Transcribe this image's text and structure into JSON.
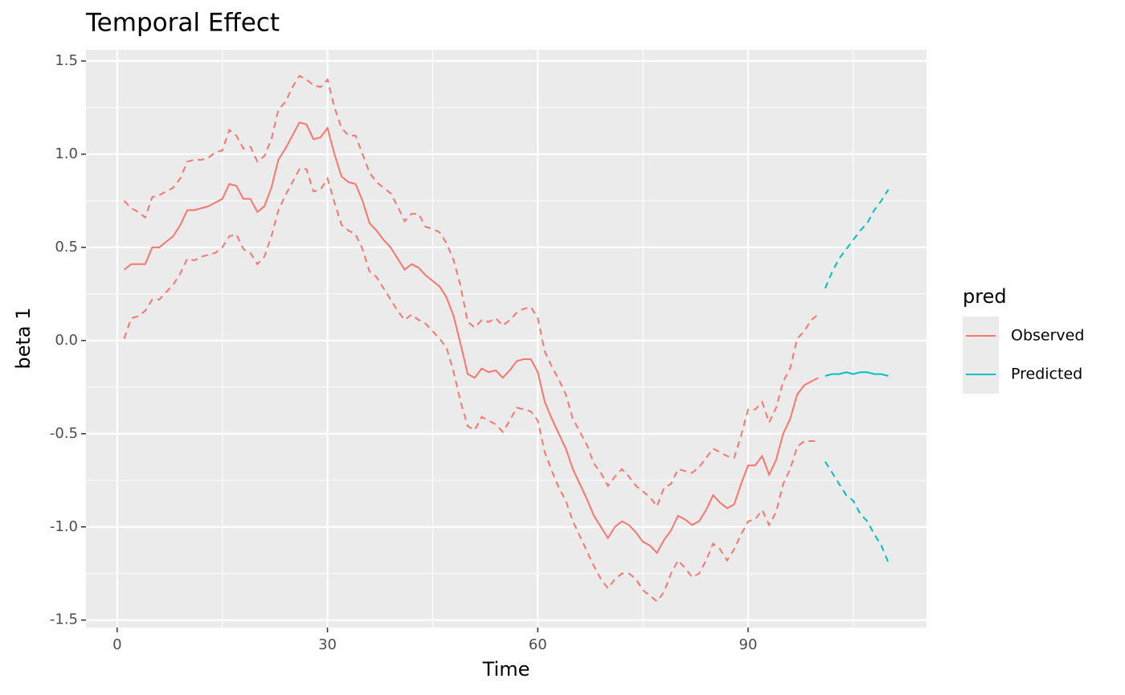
{
  "chart_data": {
    "type": "line",
    "title": "Temporal Effect",
    "x_label": "Time",
    "y_label": "beta 1",
    "legend_title": "pred",
    "legend_position": "right",
    "xlim": [
      -4.45,
      115.45
    ],
    "ylim": [
      -1.54,
      1.56
    ],
    "xticks": [
      0,
      30,
      60,
      90
    ],
    "yticks": [
      {
        "value": 1.5,
        "label": "1.5"
      },
      {
        "value": 1,
        "label": "1.0"
      },
      {
        "value": 0.5,
        "label": "0.5"
      },
      {
        "value": 0,
        "label": "0.0"
      },
      {
        "value": -0.5,
        "label": "-0.5"
      },
      {
        "value": -1,
        "label": "-1.0"
      },
      {
        "value": -1.5,
        "label": "-1.5"
      }
    ],
    "xminor": [
      15,
      45,
      75,
      105
    ],
    "yminor": [
      1.25,
      0.75,
      0.25,
      -0.25,
      -0.75,
      -1.25
    ],
    "grid": true,
    "series": [
      {
        "name": "Observed",
        "color": "#f8766d",
        "x": [
          1,
          2,
          3,
          4,
          5,
          6,
          7,
          8,
          9,
          10,
          11,
          12,
          13,
          14,
          15,
          16,
          17,
          18,
          19,
          20,
          21,
          22,
          23,
          24,
          25,
          26,
          27,
          28,
          29,
          30,
          31,
          32,
          33,
          34,
          35,
          36,
          37,
          38,
          39,
          40,
          41,
          42,
          43,
          44,
          45,
          46,
          47,
          48,
          49,
          50,
          51,
          52,
          53,
          54,
          55,
          56,
          57,
          58,
          59,
          60,
          61,
          62,
          63,
          64,
          65,
          66,
          67,
          68,
          69,
          70,
          71,
          72,
          73,
          74,
          75,
          76,
          77,
          78,
          79,
          80,
          81,
          82,
          83,
          84,
          85,
          86,
          87,
          88,
          89,
          90,
          91,
          92,
          93,
          94,
          95,
          96,
          97,
          98,
          99,
          100
        ],
        "values": [
          0.38,
          0.41,
          0.41,
          0.41,
          0.5,
          0.5,
          0.53,
          0.56,
          0.62,
          0.7,
          0.7,
          0.71,
          0.72,
          0.74,
          0.76,
          0.84,
          0.83,
          0.76,
          0.76,
          0.69,
          0.72,
          0.82,
          0.97,
          1.03,
          1.1,
          1.17,
          1.16,
          1.08,
          1.09,
          1.14,
          1.0,
          0.88,
          0.85,
          0.84,
          0.75,
          0.63,
          0.59,
          0.54,
          0.5,
          0.44,
          0.38,
          0.41,
          0.39,
          0.35,
          0.32,
          0.29,
          0.23,
          0.13,
          -0.02,
          -0.18,
          -0.2,
          -0.15,
          -0.17,
          -0.16,
          -0.2,
          -0.16,
          -0.11,
          -0.1,
          -0.1,
          -0.17,
          -0.33,
          -0.42,
          -0.5,
          -0.58,
          -0.69,
          -0.77,
          -0.85,
          -0.94,
          -1.0,
          -1.06,
          -1.0,
          -0.97,
          -0.99,
          -1.03,
          -1.08,
          -1.1,
          -1.14,
          -1.07,
          -1.02,
          -0.94,
          -0.96,
          -0.99,
          -0.97,
          -0.91,
          -0.83,
          -0.87,
          -0.9,
          -0.88,
          -0.77,
          -0.67,
          -0.67,
          -0.62,
          -0.72,
          -0.64,
          -0.5,
          -0.42,
          -0.29,
          -0.24,
          -0.22,
          -0.2
        ],
        "upper": [
          0.75,
          0.71,
          0.69,
          0.66,
          0.77,
          0.78,
          0.8,
          0.82,
          0.87,
          0.96,
          0.97,
          0.97,
          0.98,
          1.01,
          1.02,
          1.13,
          1.1,
          1.03,
          1.04,
          0.96,
          0.99,
          1.08,
          1.24,
          1.28,
          1.36,
          1.42,
          1.4,
          1.37,
          1.36,
          1.4,
          1.25,
          1.14,
          1.1,
          1.1,
          1.0,
          0.9,
          0.85,
          0.82,
          0.79,
          0.72,
          0.64,
          0.68,
          0.68,
          0.61,
          0.6,
          0.58,
          0.52,
          0.43,
          0.29,
          0.1,
          0.07,
          0.11,
          0.1,
          0.12,
          0.08,
          0.11,
          0.15,
          0.17,
          0.18,
          0.12,
          -0.06,
          -0.14,
          -0.21,
          -0.29,
          -0.42,
          -0.49,
          -0.56,
          -0.66,
          -0.71,
          -0.78,
          -0.73,
          -0.69,
          -0.73,
          -0.78,
          -0.81,
          -0.84,
          -0.89,
          -0.79,
          -0.77,
          -0.69,
          -0.7,
          -0.71,
          -0.68,
          -0.63,
          -0.58,
          -0.6,
          -0.62,
          -0.63,
          -0.51,
          -0.37,
          -0.37,
          -0.33,
          -0.44,
          -0.36,
          -0.22,
          -0.15,
          0.01,
          0.05,
          0.11,
          0.14
        ],
        "lower": [
          0.01,
          0.12,
          0.13,
          0.16,
          0.22,
          0.22,
          0.26,
          0.3,
          0.36,
          0.44,
          0.43,
          0.45,
          0.46,
          0.47,
          0.5,
          0.56,
          0.57,
          0.49,
          0.47,
          0.41,
          0.45,
          0.56,
          0.7,
          0.78,
          0.85,
          0.92,
          0.92,
          0.8,
          0.81,
          0.87,
          0.74,
          0.62,
          0.59,
          0.57,
          0.49,
          0.37,
          0.34,
          0.28,
          0.22,
          0.16,
          0.11,
          0.14,
          0.11,
          0.09,
          0.05,
          0.01,
          -0.04,
          -0.17,
          -0.33,
          -0.46,
          -0.48,
          -0.41,
          -0.43,
          -0.45,
          -0.49,
          -0.43,
          -0.36,
          -0.37,
          -0.38,
          -0.43,
          -0.6,
          -0.7,
          -0.79,
          -0.86,
          -0.97,
          -1.05,
          -1.13,
          -1.21,
          -1.28,
          -1.33,
          -1.28,
          -1.25,
          -1.25,
          -1.28,
          -1.34,
          -1.37,
          -1.4,
          -1.35,
          -1.25,
          -1.18,
          -1.22,
          -1.27,
          -1.25,
          -1.18,
          -1.09,
          -1.12,
          -1.18,
          -1.12,
          -1.04,
          -0.97,
          -0.96,
          -0.91,
          -0.99,
          -0.92,
          -0.77,
          -0.69,
          -0.57,
          -0.54,
          -0.54,
          -0.54
        ]
      },
      {
        "name": "Predicted",
        "color": "#00bfc4",
        "x": [
          101,
          102,
          103,
          104,
          105,
          106,
          107,
          108,
          109,
          110
        ],
        "values": [
          -0.19,
          -0.18,
          -0.18,
          -0.17,
          -0.18,
          -0.17,
          -0.17,
          -0.18,
          -0.18,
          -0.19
        ],
        "upper": [
          0.28,
          0.37,
          0.44,
          0.49,
          0.54,
          0.59,
          0.63,
          0.7,
          0.75,
          0.81
        ],
        "lower": [
          -0.65,
          -0.71,
          -0.77,
          -0.83,
          -0.86,
          -0.93,
          -0.97,
          -1.04,
          -1.1,
          -1.19
        ]
      }
    ]
  }
}
